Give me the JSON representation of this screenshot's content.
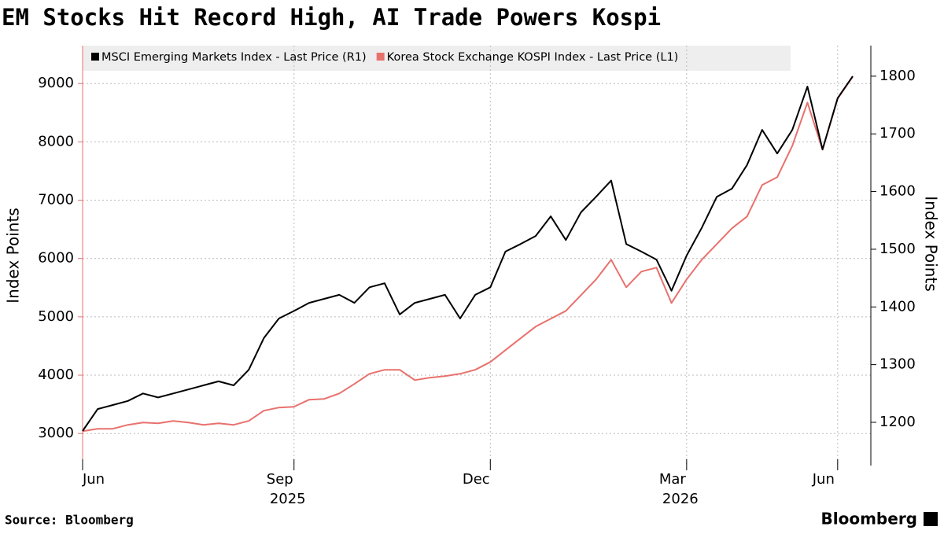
{
  "chart_data": {
    "type": "line",
    "title": "EM Stocks Hit Record High, AI Trade Powers Kospi",
    "source": "Source: Bloomberg",
    "brand": "Bloomberg",
    "ylabel": "Index Points",
    "y2label": "Index Points",
    "categories": [
      "Jun",
      null,
      null,
      null,
      null,
      null,
      null,
      null,
      null,
      null,
      null,
      null,
      null,
      null,
      "Sep",
      null,
      null,
      null,
      null,
      null,
      null,
      null,
      null,
      null,
      null,
      null,
      null,
      "Dec",
      null,
      null,
      null,
      null,
      null,
      null,
      null,
      null,
      null,
      null,
      null,
      null,
      "Mar",
      null,
      null,
      null,
      null,
      null,
      null,
      null,
      null,
      null,
      "Jun",
      null
    ],
    "year_labels": [
      "2025",
      "2026"
    ],
    "series": [
      {
        "name": "MSCI Emerging Markets Index - Last Price (R1)",
        "color": "#000000",
        "axis": "y2",
        "values": [
          1185,
          1223,
          1230,
          1237,
          1250,
          1243,
          1250,
          1257,
          1264,
          1271,
          1264,
          1291,
          1346,
          1380,
          1393,
          1407,
          1414,
          1421,
          1407,
          1434,
          1441,
          1387,
          1407,
          1414,
          1421,
          1380,
          1421,
          1434,
          1496,
          1509,
          1523,
          1557,
          1516,
          1564,
          1591,
          1619,
          1509,
          1496,
          1482,
          1428,
          1489,
          1537,
          1591,
          1605,
          1646,
          1707,
          1666,
          1707,
          1782,
          1673,
          1762,
          1800
        ]
      },
      {
        "name": "Korea Stock Exchange KOSPI Index - Last Price (L1)",
        "color": "#e8716d",
        "values": [
          3040,
          3081,
          3081,
          3148,
          3189,
          3175,
          3216,
          3189,
          3148,
          3175,
          3148,
          3216,
          3391,
          3445,
          3458,
          3580,
          3593,
          3687,
          3849,
          4024,
          4092,
          4092,
          3916,
          3957,
          3984,
          4024,
          4092,
          4226,
          4429,
          4631,
          4833,
          4968,
          5102,
          5372,
          5642,
          5978,
          5507,
          5776,
          5844,
          5237,
          5642,
          5978,
          6248,
          6518,
          6720,
          7259,
          7394,
          7933,
          8674,
          7865,
          8741,
          9119
        ]
      }
    ],
    "ylim": [
      2450,
      9650
    ],
    "yticks": [
      3000,
      4000,
      5000,
      6000,
      7000,
      8000,
      9000
    ],
    "y2lim": [
      1125,
      1853
    ],
    "y2ticks": [
      1200,
      1300,
      1400,
      1500,
      1600,
      1700,
      1800
    ],
    "grid": true
  }
}
